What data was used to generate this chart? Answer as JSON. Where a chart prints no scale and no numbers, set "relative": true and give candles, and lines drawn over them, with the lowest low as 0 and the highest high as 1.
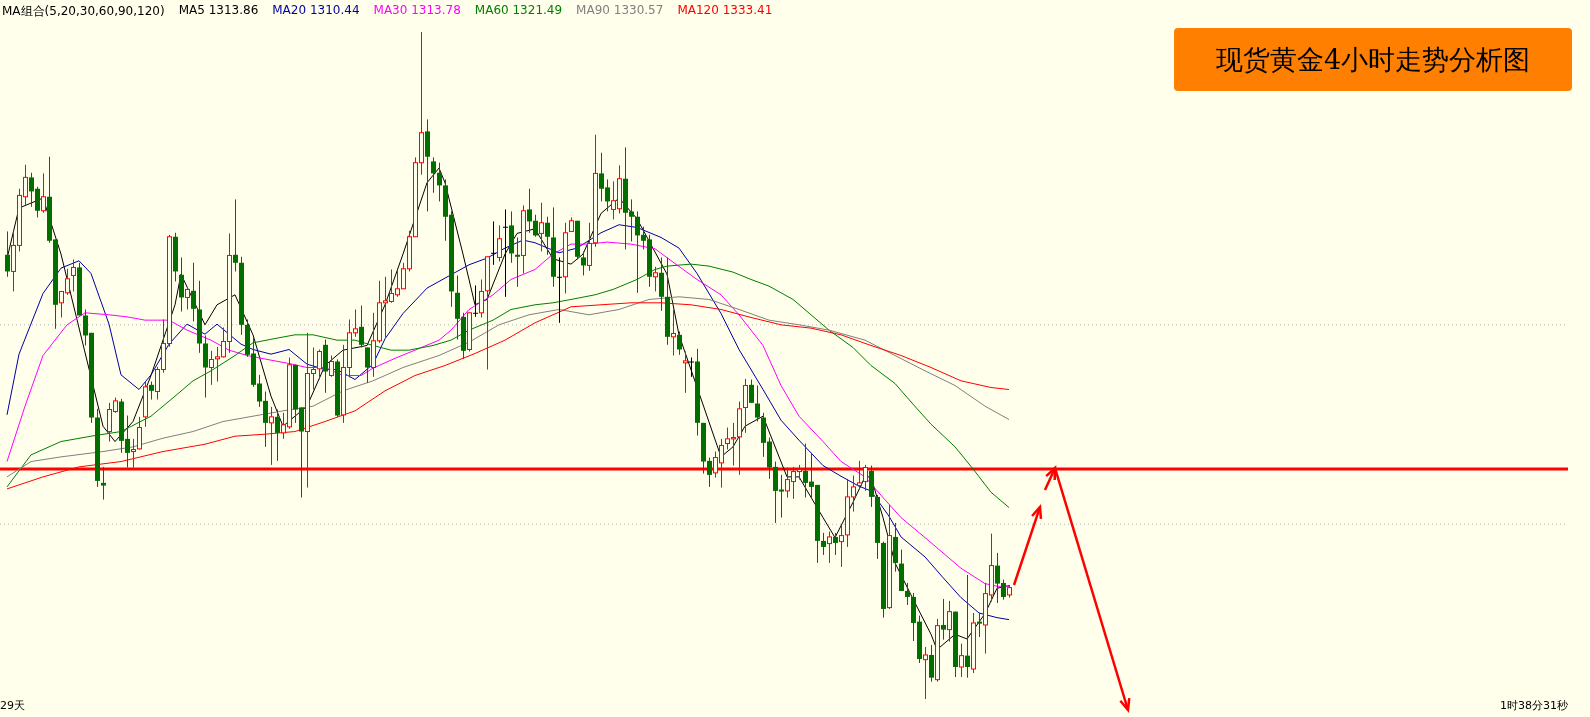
{
  "chart_data": {
    "type": "candlestick",
    "title": "现货黄金4小时走势分析图",
    "relative": true,
    "legend_title": "MA组合(5,20,30,60,90,120)",
    "annotations": [
      "29天",
      "1时38分31秒"
    ],
    "categories": [
      null,
      null,
      null,
      null,
      null,
      null,
      null,
      null,
      null,
      null,
      null,
      null,
      null,
      null,
      null,
      null,
      null,
      null,
      null,
      null,
      null,
      null,
      null,
      null,
      null,
      null,
      null,
      null,
      null,
      null,
      null,
      null,
      null,
      null,
      null,
      null,
      null,
      null,
      null,
      null,
      null,
      null,
      null,
      null,
      null,
      null,
      null,
      null,
      null,
      null,
      null,
      null,
      null,
      null,
      null,
      null,
      null,
      null,
      null,
      null,
      null,
      null,
      null,
      null,
      null,
      null,
      null,
      null,
      null,
      null,
      null,
      null,
      null,
      null,
      null,
      null,
      null,
      null,
      null,
      null,
      null,
      null,
      null,
      null,
      null,
      null,
      null,
      null,
      null,
      null,
      null,
      null,
      null,
      null,
      null,
      null,
      null,
      null,
      null,
      null,
      null,
      null,
      null,
      null,
      null,
      null,
      null,
      null,
      null,
      null,
      null,
      null,
      null,
      null,
      null,
      null,
      null,
      null,
      null,
      null,
      null,
      null,
      null,
      null,
      null,
      null,
      null,
      null,
      null,
      null,
      null,
      null,
      null,
      null,
      null,
      null,
      null,
      null,
      null,
      null,
      null,
      null,
      null,
      null,
      null,
      null,
      null,
      null,
      null,
      null,
      null,
      null,
      null,
      null,
      null,
      null,
      null,
      null,
      null,
      null,
      null,
      null,
      null,
      null,
      null,
      null,
      null,
      null
    ],
    "ohlc": [
      [
        0.666,
        0.701,
        0.633,
        0.641
      ],
      [
        0.641,
        0.701,
        0.611,
        0.68
      ],
      [
        0.68,
        0.765,
        0.671,
        0.755
      ],
      [
        0.753,
        0.801,
        0.741,
        0.782
      ],
      [
        0.782,
        0.789,
        0.738,
        0.761
      ],
      [
        0.765,
        0.768,
        0.722,
        0.732
      ],
      [
        0.732,
        0.788,
        0.729,
        0.753
      ],
      [
        0.753,
        0.813,
        0.684,
        0.687
      ],
      [
        0.689,
        0.689,
        0.555,
        0.591
      ],
      [
        0.594,
        0.611,
        0.572,
        0.611
      ],
      [
        0.609,
        0.645,
        0.606,
        0.63
      ],
      [
        0.635,
        0.659,
        0.611,
        0.647
      ],
      [
        0.647,
        0.654,
        0.575,
        0.575
      ],
      [
        0.575,
        0.584,
        0.53,
        0.545
      ],
      [
        0.549,
        0.549,
        0.414,
        0.422
      ],
      [
        0.422,
        0.435,
        0.318,
        0.327
      ],
      [
        0.324,
        0.348,
        0.299,
        0.32
      ],
      [
        0.401,
        0.444,
        0.386,
        0.434
      ],
      [
        0.431,
        0.452,
        0.429,
        0.447
      ],
      [
        0.446,
        0.45,
        0.369,
        0.387
      ],
      [
        0.39,
        0.425,
        0.347,
        0.369
      ],
      [
        0.371,
        0.39,
        0.347,
        0.374
      ],
      [
        0.375,
        0.423,
        0.374,
        0.407
      ],
      [
        0.423,
        0.476,
        0.408,
        0.468
      ],
      [
        0.471,
        0.476,
        0.449,
        0.462
      ],
      [
        0.461,
        0.498,
        0.449,
        0.494
      ],
      [
        0.494,
        0.569,
        0.489,
        0.533
      ],
      [
        0.533,
        0.696,
        0.528,
        0.693
      ],
      [
        0.693,
        0.699,
        0.626,
        0.641
      ],
      [
        0.636,
        0.662,
        0.581,
        0.602
      ],
      [
        0.602,
        0.618,
        0.584,
        0.614
      ],
      [
        0.612,
        0.654,
        0.566,
        0.585
      ],
      [
        0.584,
        0.627,
        0.519,
        0.533
      ],
      [
        0.533,
        0.545,
        0.452,
        0.497
      ],
      [
        0.497,
        0.522,
        0.471,
        0.509
      ],
      [
        0.51,
        0.528,
        0.476,
        0.513
      ],
      [
        0.513,
        0.557,
        0.512,
        0.536
      ],
      [
        0.536,
        0.698,
        0.519,
        0.665
      ],
      [
        0.666,
        0.749,
        0.641,
        0.654
      ],
      [
        0.654,
        0.663,
        0.546,
        0.561
      ],
      [
        0.561,
        0.569,
        0.513,
        0.516
      ],
      [
        0.518,
        0.542,
        0.468,
        0.471
      ],
      [
        0.473,
        0.486,
        0.438,
        0.446
      ],
      [
        0.447,
        0.461,
        0.378,
        0.414
      ],
      [
        0.414,
        0.438,
        0.351,
        0.423
      ],
      [
        0.423,
        0.434,
        0.357,
        0.399
      ],
      [
        0.399,
        0.429,
        0.39,
        0.411
      ],
      [
        0.408,
        0.512,
        0.405,
        0.501
      ],
      [
        0.501,
        0.501,
        0.414,
        0.434
      ],
      [
        0.437,
        0.437,
        0.302,
        0.401
      ],
      [
        0.401,
        0.549,
        0.317,
        0.488
      ],
      [
        0.488,
        0.527,
        0.464,
        0.494
      ],
      [
        0.495,
        0.524,
        0.479,
        0.521
      ],
      [
        0.531,
        0.539,
        0.459,
        0.491
      ],
      [
        0.485,
        0.515,
        0.483,
        0.506
      ],
      [
        0.506,
        0.509,
        0.423,
        0.425
      ],
      [
        0.426,
        0.531,
        0.414,
        0.497
      ],
      [
        0.497,
        0.569,
        0.482,
        0.549
      ],
      [
        0.549,
        0.584,
        0.543,
        0.555
      ],
      [
        0.558,
        0.59,
        0.527,
        0.531
      ],
      [
        0.527,
        0.527,
        0.474,
        0.497
      ],
      [
        0.497,
        0.579,
        0.483,
        0.537
      ],
      [
        0.537,
        0.627,
        0.534,
        0.594
      ],
      [
        0.594,
        0.633,
        0.542,
        0.597
      ],
      [
        0.596,
        0.644,
        0.594,
        0.608
      ],
      [
        0.606,
        0.642,
        0.603,
        0.615
      ],
      [
        0.615,
        0.654,
        0.615,
        0.645
      ],
      [
        0.645,
        0.702,
        0.641,
        0.693
      ],
      [
        0.693,
        0.812,
        0.693,
        0.804
      ],
      [
        0.804,
        1,
        0.786,
        0.849
      ],
      [
        0.851,
        0.869,
        0.731,
        0.813
      ],
      [
        0.806,
        0.812,
        0.759,
        0.788
      ],
      [
        0.789,
        0.804,
        0.746,
        0.77
      ],
      [
        0.77,
        0.779,
        0.687,
        0.723
      ],
      [
        0.726,
        0.731,
        0.588,
        0.611
      ],
      [
        0.609,
        0.635,
        0.539,
        0.57
      ],
      [
        0.573,
        0.579,
        0.51,
        0.522
      ],
      [
        0.524,
        0.579,
        0.521,
        0.579
      ],
      [
        0.579,
        0.62,
        0.573,
        0.579
      ],
      [
        0.579,
        0.629,
        0.572,
        0.611
      ],
      [
        0.612,
        0.663,
        0.494,
        0.663
      ],
      [
        0.669,
        0.716,
        0.651,
        0.669
      ],
      [
        0.662,
        0.71,
        0.656,
        0.69
      ],
      [
        0.708,
        0.734,
        0.603,
        0.708
      ],
      [
        0.71,
        0.731,
        0.654,
        0.668
      ],
      [
        0.666,
        0.692,
        0.618,
        0.663
      ],
      [
        0.665,
        0.74,
        0.638,
        0.732
      ],
      [
        0.734,
        0.765,
        0.699,
        0.716
      ],
      [
        0.717,
        0.726,
        0.693,
        0.695
      ],
      [
        0.698,
        0.744,
        0.671,
        0.714
      ],
      [
        0.714,
        0.723,
        0.666,
        0.693
      ],
      [
        0.692,
        0.737,
        0.618,
        0.633
      ],
      [
        0.633,
        0.662,
        0.564,
        0.633
      ],
      [
        0.633,
        0.714,
        0.608,
        0.699
      ],
      [
        0.701,
        0.722,
        0.701,
        0.717
      ],
      [
        0.717,
        0.717,
        0.659,
        0.663
      ],
      [
        0.662,
        0.671,
        0.635,
        0.65
      ],
      [
        0.65,
        0.714,
        0.642,
        0.683
      ],
      [
        0.684,
        0.846,
        0.678,
        0.788
      ],
      [
        0.788,
        0.819,
        0.746,
        0.765
      ],
      [
        0.767,
        0.779,
        0.731,
        0.746
      ],
      [
        0.734,
        0.776,
        0.719,
        0.747
      ],
      [
        0.735,
        0.8,
        0.728,
        0.78
      ],
      [
        0.78,
        0.827,
        0.674,
        0.729
      ],
      [
        0.731,
        0.749,
        0.686,
        0.723
      ],
      [
        0.723,
        0.731,
        0.609,
        0.695
      ],
      [
        0.696,
        0.708,
        0.674,
        0.687
      ],
      [
        0.689,
        0.696,
        0.618,
        0.633
      ],
      [
        0.633,
        0.648,
        0.611,
        0.639
      ],
      [
        0.639,
        0.662,
        0.582,
        0.603
      ],
      [
        0.603,
        0.662,
        0.531,
        0.543
      ],
      [
        0.543,
        0.584,
        0.515,
        0.548
      ],
      [
        0.546,
        0.551,
        0.516,
        0.524
      ],
      [
        0.504,
        0.521,
        0.459,
        0.507
      ],
      [
        0.506,
        0.512,
        0.483,
        0.506
      ],
      [
        0.506,
        0.525,
        0.395,
        0.414
      ],
      [
        0.414,
        0.414,
        0.338,
        0.356
      ],
      [
        0.357,
        0.362,
        0.318,
        0.336
      ],
      [
        0.339,
        0.371,
        0.332,
        0.362
      ],
      [
        0.354,
        0.39,
        0.317,
        0.38
      ],
      [
        0.383,
        0.407,
        0.374,
        0.39
      ],
      [
        0.39,
        0.414,
        0.35,
        0.392
      ],
      [
        0.393,
        0.446,
        0.336,
        0.435
      ],
      [
        0.437,
        0.48,
        0.399,
        0.47
      ],
      [
        0.471,
        0.479,
        0.444,
        0.444
      ],
      [
        0.443,
        0.47,
        0.416,
        0.422
      ],
      [
        0.422,
        0.429,
        0.363,
        0.384
      ],
      [
        0.386,
        0.392,
        0.33,
        0.347
      ],
      [
        0.348,
        0.356,
        0.264,
        0.312
      ],
      [
        0.314,
        0.336,
        0.272,
        0.311
      ],
      [
        0.312,
        0.347,
        0.302,
        0.329
      ],
      [
        0.326,
        0.348,
        0.3,
        0.341
      ],
      [
        0.341,
        0.351,
        0.329,
        0.344
      ],
      [
        0.342,
        0.383,
        0.302,
        0.324
      ],
      [
        0.326,
        0.369,
        0.302,
        0.318
      ],
      [
        0.321,
        0.321,
        0.204,
        0.237
      ],
      [
        0.237,
        0.249,
        0.216,
        0.228
      ],
      [
        0.233,
        0.251,
        0.204,
        0.243
      ],
      [
        0.243,
        0.249,
        0.216,
        0.234
      ],
      [
        0.236,
        0.261,
        0.198,
        0.245
      ],
      [
        0.246,
        0.33,
        0.228,
        0.303
      ],
      [
        0.303,
        0.335,
        0.281,
        0.318
      ],
      [
        0.32,
        0.357,
        0.314,
        0.324
      ],
      [
        0.326,
        0.351,
        0.312,
        0.347
      ],
      [
        0.342,
        0.35,
        0.288,
        0.303
      ],
      [
        0.303,
        0.306,
        0.21,
        0.234
      ],
      [
        0.234,
        0.236,
        0.122,
        0.135
      ],
      [
        0.137,
        0.291,
        0.135,
        0.245
      ],
      [
        0.243,
        0.264,
        0.191,
        0.204
      ],
      [
        0.203,
        0.224,
        0.162,
        0.162
      ],
      [
        0.162,
        0.174,
        0.141,
        0.153
      ],
      [
        0.153,
        0.159,
        0.087,
        0.114
      ],
      [
        0.116,
        0.125,
        0.054,
        0.06
      ],
      [
        0.059,
        0.078,
        0,
        0.066
      ],
      [
        0.066,
        0.081,
        0.026,
        0.032
      ],
      [
        0.029,
        0.12,
        0.026,
        0.11
      ],
      [
        0.111,
        0.15,
        0.089,
        0.104
      ],
      [
        0.104,
        0.147,
        0.086,
        0.131
      ],
      [
        0.131,
        0.131,
        0.033,
        0.048
      ],
      [
        0.048,
        0.083,
        0.033,
        0.065
      ],
      [
        0.065,
        0.186,
        0.032,
        0.048
      ],
      [
        0.045,
        0.129,
        0.039,
        0.114
      ],
      [
        0.116,
        0.129,
        0.093,
        0.113
      ],
      [
        0.111,
        0.174,
        0.068,
        0.158
      ],
      [
        0.156,
        0.248,
        0.146,
        0.2
      ],
      [
        0.2,
        0.219,
        0.144,
        0.173
      ],
      [
        0.174,
        0.179,
        0.149,
        0.153
      ],
      [
        0.156,
        0.171,
        0.152,
        0.167
      ]
    ],
    "series": [
      {
        "type": "line",
        "name": "MA5 1313.86",
        "color": "#000000",
        "values": [
          0.66,
          null,
          0.736,
          null,
          null,
          null,
          0.751,
          null,
          null,
          0.667,
          null,
          null,
          null,
          null,
          null,
          null,
          0.409,
          null,
          0.386,
          null,
          null,
          0.416,
          null,
          null,
          0.485,
          null,
          null,
          null,
          0.591,
          0.637,
          null,
          null,
          null,
          0.561,
          null,
          0.591,
          null,
          null,
          0.606,
          null,
          null,
          0.546,
          null,
          null,
          0.454,
          null,
          0.409,
          null,
          null,
          null,
          0.439,
          null,
          null,
          0.5,
          null,
          null,
          0.523,
          null,
          null,
          null,
          0.53,
          null,
          null,
          0.591,
          null,
          null,
          0.667,
          null,
          null,
          null,
          0.774,
          null,
          0.796,
          0.774,
          null,
          null,
          0.667,
          null,
          0.591,
          null,
          0.599,
          null,
          null,
          0.667,
          null,
          0.698,
          null,
          null,
          0.705,
          null,
          null,
          0.66,
          null,
          null,
          0.652,
          null,
          0.667,
          null,
          null,
          0.728,
          null,
          null,
          0.751,
          null,
          null,
          0.72,
          null,
          null,
          null,
          null,
          0.637,
          null,
          0.546,
          null,
          null,
          null,
          null,
          null,
          null,
          0.363,
          null,
          0.378,
          null,
          0.409,
          null,
          null,
          0.424,
          null,
          null,
          null,
          0.333,
          null,
          0.333,
          null,
          null,
          null,
          0.272,
          null,
          0.242,
          null,
          null,
          0.295,
          null,
          0.333,
          0.333,
          null,
          0.272,
          null,
          0.204,
          null,
          null,
          0.15,
          null,
          null,
          0.097,
          0.074,
          null,
          null,
          0.097,
          null,
          0.09,
          null,
          null,
          0.128,
          null,
          0.166,
          null,
          0.17
        ]
      },
      {
        "type": "line",
        "name": "MA20 1310.44",
        "color": "#0000a0",
        "values": [
          0.426,
          null,
          0.517,
          null,
          null,
          null,
          0.608,
          null,
          null,
          0.646,
          null,
          null,
          0.657,
          null,
          0.638,
          null,
          null,
          0.562,
          null,
          0.486,
          null,
          null,
          0.464,
          null,
          0.486,
          null,
          null,
          0.532,
          null,
          null,
          0.562,
          null,
          null,
          0.547,
          null,
          0.562,
          null,
          null,
          null,
          0.532,
          null,
          0.524,
          null,
          null,
          0.517,
          null,
          null,
          0.524,
          null,
          null,
          0.502,
          null,
          null,
          0.494,
          null,
          0.494,
          null,
          null,
          0.479,
          null,
          null,
          0.502,
          null,
          0.54,
          null,
          null,
          0.578,
          null,
          null,
          null,
          0.616,
          null,
          null,
          0.631,
          null,
          null,
          null,
          0.651,
          null,
          null,
          0.661,
          null,
          null,
          0.676,
          null,
          null,
          0.688,
          null,
          0.684,
          null,
          null,
          null,
          0.669,
          null,
          null,
          0.676,
          null,
          null,
          null,
          0.699,
          null,
          null,
          0.711,
          null,
          null,
          0.707,
          null,
          null,
          null,
          0.692,
          null,
          null,
          0.676,
          null,
          null,
          0.638,
          null,
          null,
          null,
          0.578,
          null,
          null,
          0.524,
          null,
          null,
          null,
          0.464,
          null,
          null,
          0.418,
          null,
          null,
          0.388,
          null,
          null,
          null,
          0.35,
          null,
          null,
          0.334,
          null,
          null,
          0.319,
          null,
          0.312,
          null,
          null,
          0.274,
          null,
          0.243,
          null,
          null,
          null,
          0.213,
          null,
          null,
          0.182,
          null,
          null,
          0.152,
          null,
          null,
          0.129,
          null,
          null,
          0.122,
          null,
          0.119
        ]
      },
      {
        "type": "line",
        "name": "MA30 1313.78",
        "color": "#ff00ff",
        "values": [
          0.356,
          null,
          null,
          0.439,
          null,
          null,
          0.515,
          null,
          null,
          null,
          0.561,
          null,
          null,
          0.579,
          null,
          null,
          null,
          0.576,
          null,
          null,
          0.573,
          null,
          null,
          0.568,
          null,
          null,
          null,
          0.568,
          null,
          null,
          0.553,
          null,
          null,
          null,
          0.538,
          null,
          null,
          0.523,
          null,
          null,
          0.515,
          null,
          null,
          null,
          0.508,
          null,
          null,
          0.503,
          null,
          null,
          0.497,
          null,
          null,
          0.497,
          null,
          null,
          0.485,
          null,
          null,
          0.485,
          null,
          0.496,
          null,
          null,
          null,
          0.512,
          null,
          null,
          0.523,
          null,
          null,
          null,
          0.538,
          null,
          0.553,
          null,
          null,
          0.584,
          null,
          null,
          null,
          0.606,
          null,
          null,
          0.629,
          null,
          null,
          null,
          0.644,
          null,
          null,
          0.667,
          null,
          null,
          0.682,
          null,
          null,
          0.682,
          null,
          null,
          0.685,
          null,
          null,
          null,
          0.682,
          null,
          null,
          null,
          0.675,
          null,
          null,
          0.655,
          null,
          null,
          null,
          0.629,
          null,
          null,
          null,
          0.606,
          null,
          null,
          0.576,
          null,
          null,
          null,
          0.53,
          null,
          null,
          0.47,
          null,
          null,
          0.424,
          null,
          null,
          null,
          0.386,
          null,
          null,
          0.356,
          null,
          null,
          null,
          0.333,
          null,
          null,
          0.302,
          null,
          null,
          0.272,
          null,
          null,
          null,
          0.242,
          null,
          null,
          0.219,
          null,
          null,
          0.196,
          null,
          null,
          null,
          0.173,
          null,
          0.169,
          null,
          0.169
        ]
      },
      {
        "type": "line",
        "name": "MA60 1321.49",
        "color": "#008000",
        "values": [
          0.318,
          null,
          null,
          null,
          0.366,
          null,
          null,
          null,
          null,
          0.386,
          null,
          null,
          null,
          null,
          0.394,
          null,
          null,
          null,
          null,
          0.401,
          null,
          null,
          null,
          null,
          0.424,
          null,
          null,
          null,
          0.454,
          null,
          null,
          0.477,
          null,
          null,
          0.492,
          null,
          null,
          null,
          0.515,
          null,
          null,
          0.534,
          null,
          null,
          null,
          0.541,
          null,
          null,
          0.546,
          null,
          null,
          0.546,
          null,
          null,
          null,
          0.538,
          null,
          null,
          0.538,
          null,
          null,
          0.53,
          null,
          null,
          0.523,
          null,
          null,
          0.523,
          null,
          null,
          null,
          0.53,
          null,
          null,
          0.538,
          null,
          null,
          0.553,
          null,
          null,
          null,
          0.568,
          null,
          null,
          0.584,
          null,
          null,
          null,
          0.591,
          null,
          null,
          0.594,
          null,
          null,
          0.599,
          null,
          null,
          null,
          0.606,
          null,
          null,
          0.614,
          null,
          null,
          null,
          0.629,
          null,
          null,
          0.644,
          null,
          0.649,
          null,
          null,
          null,
          0.652,
          null,
          null,
          0.649,
          null,
          null,
          null,
          0.64,
          null,
          null,
          0.629,
          null,
          null,
          0.619,
          null,
          null,
          null,
          0.599,
          null,
          null,
          0.576,
          null,
          null,
          0.553,
          null,
          null,
          null,
          0.527,
          null,
          null,
          0.5,
          null,
          null,
          null,
          0.473,
          null,
          null,
          0.442,
          null,
          null,
          0.412,
          null,
          null,
          null,
          0.378,
          null,
          null,
          0.345,
          null,
          null,
          0.31,
          null,
          null,
          0.287
        ]
      },
      {
        "type": "line",
        "name": "MA90 1330.57",
        "color": "#808080",
        "values": [
          0.333,
          null,
          null,
          null,
          0.356,
          null,
          null,
          null,
          null,
          0.363,
          null,
          null,
          null,
          null,
          null,
          null,
          0.371,
          null,
          null,
          null,
          null,
          0.378,
          null,
          null,
          null,
          null,
          0.391,
          null,
          null,
          null,
          null,
          0.401,
          null,
          null,
          null,
          null,
          0.416,
          null,
          null,
          null,
          null,
          0.424,
          null,
          null,
          null,
          null,
          0.432,
          null,
          null,
          null,
          null,
          0.439,
          null,
          null,
          null,
          null,
          0.462,
          null,
          null,
          null,
          null,
          0.477,
          null,
          null,
          null,
          null,
          0.497,
          null,
          null,
          null,
          null,
          null,
          0.515,
          null,
          null,
          null,
          null,
          0.535,
          null,
          null,
          null,
          null,
          0.561,
          null,
          null,
          null,
          null,
          0.576,
          null,
          null,
          null,
          null,
          0.584,
          null,
          null,
          null,
          null,
          0.576,
          null,
          null,
          null,
          null,
          0.584,
          null,
          null,
          null,
          null,
          0.599,
          null,
          null,
          null,
          null,
          0.603,
          null,
          null,
          null,
          null,
          0.599,
          null,
          null,
          null,
          null,
          0.584,
          null,
          null,
          null,
          null,
          0.568,
          null,
          null,
          null,
          null,
          0.561,
          null,
          null,
          null,
          null,
          0.553,
          null,
          null,
          null,
          null,
          null,
          0.538,
          null,
          null,
          null,
          null,
          0.515,
          null,
          null,
          null,
          null,
          0.492,
          null,
          null,
          null,
          null,
          0.47,
          null,
          null,
          null,
          null,
          0.439,
          null,
          null,
          null,
          0.419
        ]
      },
      {
        "type": "line",
        "name": "MA120 1333.41",
        "color": "#ff0000",
        "values": [
          0.315,
          null,
          null,
          null,
          null,
          null,
          0.333,
          null,
          null,
          null,
          null,
          null,
          0.348,
          null,
          null,
          null,
          null,
          null,
          null,
          0.356,
          null,
          null,
          null,
          null,
          null,
          null,
          0.371,
          null,
          null,
          null,
          null,
          null,
          null,
          0.382,
          null,
          null,
          null,
          null,
          0.394,
          null,
          null,
          null,
          null,
          0.397,
          null,
          null,
          null,
          null,
          0.401,
          null,
          null,
          null,
          null,
          0.416,
          null,
          null,
          null,
          null,
          0.432,
          null,
          null,
          null,
          null,
          0.462,
          null,
          null,
          null,
          null,
          0.485,
          null,
          null,
          null,
          null,
          0.5,
          null,
          null,
          null,
          null,
          0.518,
          null,
          null,
          null,
          null,
          0.538,
          null,
          null,
          null,
          null,
          0.564,
          null,
          null,
          null,
          null,
          null,
          0.588,
          null,
          null,
          null,
          null,
          0.591,
          null,
          null,
          null,
          null,
          0.594,
          null,
          null,
          null,
          null,
          0.594,
          null,
          null,
          null,
          null,
          0.591,
          null,
          null,
          null,
          null,
          0.584,
          null,
          null,
          null,
          null,
          0.572,
          null,
          null,
          null,
          null,
          0.561,
          null,
          null,
          null,
          null,
          0.556,
          null,
          null,
          null,
          null,
          0.546,
          null,
          null,
          null,
          null,
          0.53,
          null,
          null,
          null,
          null,
          0.515,
          null,
          null,
          null,
          null,
          0.497,
          null,
          null,
          null,
          null,
          0.477,
          null,
          null,
          null,
          null,
          0.467,
          null,
          null,
          0.464
        ]
      }
    ],
    "ref_lines": [
      {
        "axis": "y",
        "value": 0.345,
        "color": "#ff0000",
        "line_style": "solid"
      },
      {
        "axis": "y",
        "value": 0.561,
        "color": "#b4b4b4",
        "line_style": "dotted"
      },
      {
        "axis": "y",
        "value": 0.262,
        "color": "#b4b4b4",
        "line_style": "dotted"
      }
    ]
  }
}
